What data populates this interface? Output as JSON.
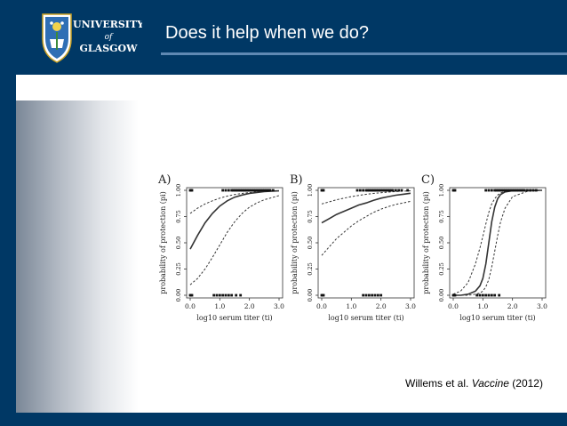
{
  "slide": {
    "title": "Does it help when we do?",
    "citation": {
      "authors": "Willems et al.",
      "journal": "Vaccine",
      "year": "(2012)"
    }
  },
  "logo": {
    "line1": "UNIVERSITY",
    "line2": "of",
    "line3": "GLASGOW"
  },
  "colors": {
    "header": "#003865",
    "rule": "#5f89b3",
    "curve": "#333333"
  },
  "chart_data": [
    {
      "type": "line",
      "panel": "A)",
      "xlabel": "log10 serum titer (ti)",
      "ylabel": "probability of protection (pi)",
      "xlim": [
        0,
        3
      ],
      "ylim": [
        0,
        1
      ],
      "xticks": [
        "0.0",
        "1.0",
        "2.0",
        "3.0"
      ],
      "yticks": [
        "0.00",
        "0.25",
        "0.50",
        "0.75",
        "1.00"
      ],
      "x": [
        0.0,
        0.25,
        0.5,
        0.75,
        1.0,
        1.25,
        1.5,
        1.75,
        2.0,
        2.25,
        2.5,
        2.75,
        3.0
      ],
      "series": [
        {
          "style": "solid",
          "values": [
            0.44,
            0.57,
            0.69,
            0.78,
            0.85,
            0.9,
            0.935,
            0.955,
            0.97,
            0.98,
            0.987,
            0.992,
            0.995
          ]
        },
        {
          "style": "dashed",
          "values": [
            0.78,
            0.83,
            0.87,
            0.9,
            0.925,
            0.945,
            0.96,
            0.97,
            0.978,
            0.985,
            0.99,
            0.993,
            0.996
          ]
        },
        {
          "style": "dashed",
          "values": [
            0.1,
            0.16,
            0.25,
            0.36,
            0.48,
            0.6,
            0.7,
            0.78,
            0.84,
            0.88,
            0.91,
            0.93,
            0.95
          ]
        }
      ],
      "observed_protected": [
        0.0,
        0.03,
        0.06,
        1.1,
        1.2,
        1.3,
        1.4,
        1.45,
        1.5,
        1.55,
        1.6,
        1.65,
        1.7,
        1.75,
        1.8,
        1.85,
        1.9,
        1.95,
        2.0,
        2.05,
        2.1,
        2.15,
        2.2,
        2.25,
        2.3,
        2.35,
        2.4,
        2.45,
        2.5,
        2.55,
        2.6,
        2.65,
        2.7,
        2.8
      ],
      "observed_unprotected": [
        0.0,
        0.03,
        0.06,
        0.8,
        0.9,
        1.0,
        1.1,
        1.2,
        1.3,
        1.4,
        1.55,
        1.7
      ]
    },
    {
      "type": "line",
      "panel": "B)",
      "xlabel": "log10 serum titer (ti)",
      "ylabel": "probability of protection (pi)",
      "xlim": [
        0,
        3
      ],
      "ylim": [
        0,
        1
      ],
      "xticks": [
        "0.0",
        "1.0",
        "2.0",
        "3.0"
      ],
      "yticks": [
        "0.00",
        "0.25",
        "0.50",
        "0.75",
        "1.00"
      ],
      "x": [
        0.0,
        0.25,
        0.5,
        0.75,
        1.0,
        1.25,
        1.5,
        1.75,
        2.0,
        2.25,
        2.5,
        2.75,
        3.0
      ],
      "series": [
        {
          "style": "solid",
          "values": [
            0.69,
            0.73,
            0.77,
            0.8,
            0.83,
            0.86,
            0.88,
            0.905,
            0.925,
            0.94,
            0.953,
            0.963,
            0.972
          ]
        },
        {
          "style": "dashed",
          "values": [
            0.87,
            0.89,
            0.91,
            0.925,
            0.94,
            0.952,
            0.962,
            0.97,
            0.977,
            0.983,
            0.988,
            0.992,
            0.995
          ]
        },
        {
          "style": "dashed",
          "values": [
            0.38,
            0.46,
            0.54,
            0.6,
            0.66,
            0.71,
            0.75,
            0.79,
            0.82,
            0.845,
            0.865,
            0.88,
            0.895
          ]
        }
      ],
      "observed_protected": [
        0.0,
        0.03,
        0.06,
        1.2,
        1.3,
        1.4,
        1.5,
        1.55,
        1.6,
        1.65,
        1.7,
        1.75,
        1.8,
        1.85,
        1.9,
        1.95,
        2.0,
        2.05,
        2.1,
        2.15,
        2.2,
        2.25,
        2.3,
        2.35,
        2.4,
        2.5,
        2.6,
        2.7,
        2.9
      ],
      "observed_unprotected": [
        0.0,
        0.03,
        0.06,
        1.4,
        1.5,
        1.6,
        1.7,
        1.8,
        1.9,
        2.0
      ]
    },
    {
      "type": "line",
      "panel": "C)",
      "xlabel": "log10 serum titer (ti)",
      "ylabel": "probability of protection (pi)",
      "xlim": [
        0,
        3
      ],
      "ylim": [
        0,
        1
      ],
      "xticks": [
        "0.0",
        "1.0",
        "2.0",
        "3.0"
      ],
      "yticks": [
        "0.00",
        "0.25",
        "0.50",
        "0.75",
        "1.00"
      ],
      "x": [
        0.0,
        0.25,
        0.5,
        0.75,
        0.9,
        1.0,
        1.1,
        1.2,
        1.3,
        1.4,
        1.5,
        1.6,
        1.75,
        2.0,
        2.5,
        3.0
      ],
      "series": [
        {
          "style": "solid",
          "values": [
            0.0,
            0.0,
            0.01,
            0.04,
            0.09,
            0.16,
            0.3,
            0.5,
            0.7,
            0.84,
            0.92,
            0.96,
            0.985,
            0.997,
            1.0,
            1.0
          ]
        },
        {
          "style": "dashed",
          "values": [
            0.01,
            0.04,
            0.12,
            0.3,
            0.45,
            0.56,
            0.68,
            0.79,
            0.87,
            0.92,
            0.955,
            0.975,
            0.99,
            0.997,
            1.0,
            1.0
          ]
        },
        {
          "style": "dashed",
          "values": [
            0.0,
            0.0,
            0.0,
            0.01,
            0.02,
            0.04,
            0.08,
            0.15,
            0.27,
            0.42,
            0.57,
            0.7,
            0.83,
            0.94,
            0.99,
            1.0
          ]
        }
      ],
      "observed_protected": [
        0.0,
        0.03,
        0.06,
        1.1,
        1.2,
        1.3,
        1.4,
        1.45,
        1.5,
        1.55,
        1.6,
        1.65,
        1.7,
        1.75,
        1.8,
        1.85,
        1.9,
        1.95,
        2.0,
        2.05,
        2.1,
        2.15,
        2.2,
        2.25,
        2.3,
        2.35,
        2.4,
        2.5,
        2.6,
        2.7,
        2.8
      ],
      "observed_unprotected": [
        0.0,
        0.03,
        0.06,
        0.8,
        0.9,
        1.0,
        1.1,
        1.2,
        1.3,
        1.4,
        1.55
      ]
    }
  ]
}
